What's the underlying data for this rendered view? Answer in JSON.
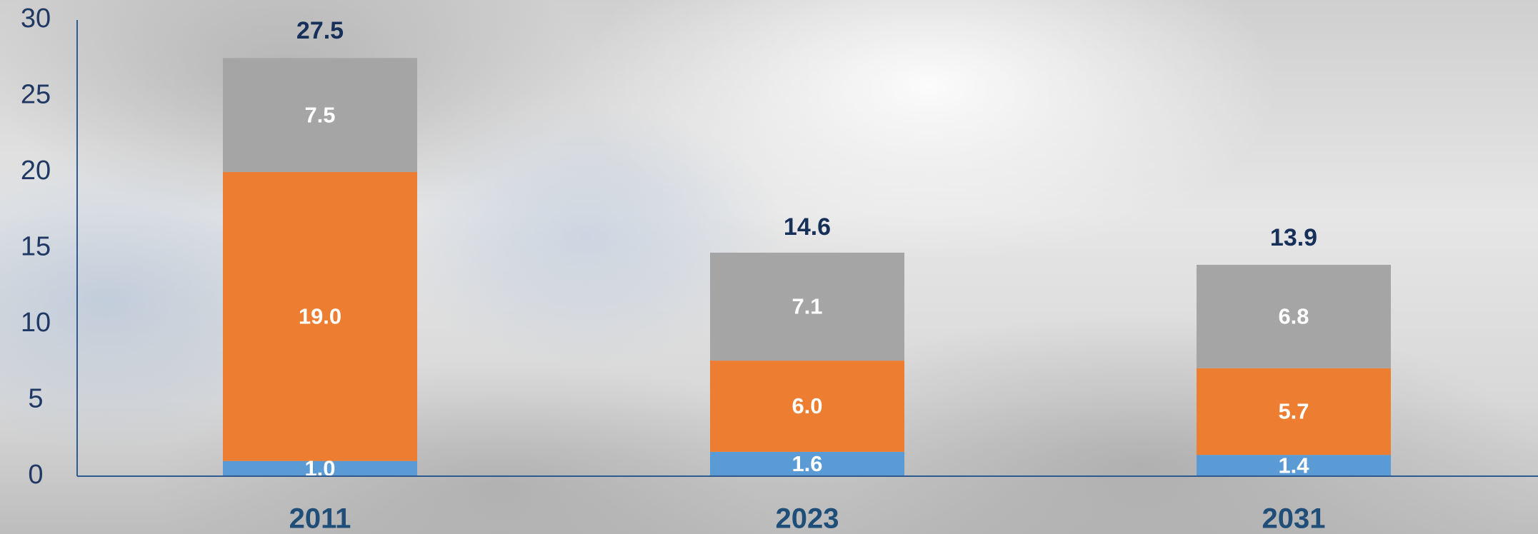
{
  "chart_data": {
    "type": "bar",
    "stacked": true,
    "categories": [
      "2011",
      "2023",
      "2031"
    ],
    "series": [
      {
        "color": "#5b9bd5",
        "values": [
          1.0,
          1.6,
          1.4
        ],
        "value_labels": [
          "1.0",
          "1.6",
          "1.4"
        ]
      },
      {
        "color": "#ed7d31",
        "values": [
          19.0,
          6.0,
          5.7
        ],
        "value_labels": [
          "19.0",
          "6.0",
          "5.7"
        ]
      },
      {
        "color": "#a5a5a5",
        "values": [
          7.5,
          7.1,
          6.8
        ],
        "value_labels": [
          "7.5",
          "7.1",
          "6.8"
        ]
      }
    ],
    "totals": [
      27.5,
      14.6,
      13.9
    ],
    "ylim": [
      0,
      30
    ],
    "yticks": [
      0,
      5,
      10,
      15,
      20,
      25,
      30
    ],
    "axis_color": "#2e5b8f"
  }
}
